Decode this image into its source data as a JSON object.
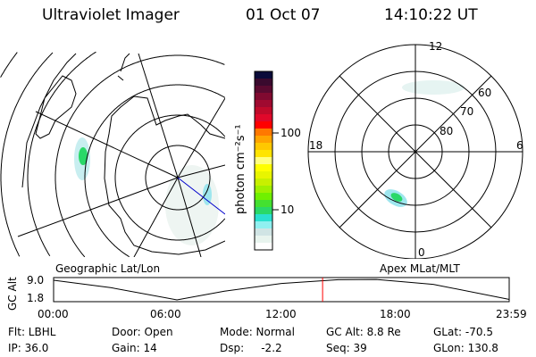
{
  "header": {
    "instrument": "Ultraviolet Imager",
    "date": "01 Oct 07",
    "time": "14:10:22 UT"
  },
  "colorbar": {
    "unit_label": "photon cm⁻²s⁻¹",
    "ticks": [
      "100",
      "10"
    ],
    "colors": [
      "#0b0b3a",
      "#3a0a2e",
      "#5a0a30",
      "#800a30",
      "#a00a30",
      "#c00a2a",
      "#e0082a",
      "#ff0000",
      "#ff7800",
      "#ffa400",
      "#ffc800",
      "#ffe400",
      "#ffff80",
      "#ffff00",
      "#e8f500",
      "#c8f000",
      "#a0f000",
      "#70f000",
      "#44e030",
      "#2ad868",
      "#2ae0d0",
      "#90f0f0",
      "#d0e4e4",
      "#e8f4ee",
      "#ffffff"
    ]
  },
  "geo_map": {
    "label": "Geographic Lat/Lon"
  },
  "polar_map": {
    "label": "Apex MLat/MLT",
    "mlt_labels": {
      "top": "12",
      "left": "18",
      "right": "6",
      "bottom": "0"
    },
    "lat_labels": [
      "80",
      "70",
      "60"
    ]
  },
  "timeline": {
    "ylabel": "GC Alt",
    "yticks": [
      "9.0",
      "1.8"
    ],
    "xticks": [
      "00:00",
      "06:00",
      "12:00",
      "18:00",
      "23:59"
    ],
    "altitude_curve": [
      [
        0,
        9.0
      ],
      [
        3,
        6.3
      ],
      [
        6.5,
        1.8
      ],
      [
        9,
        5.0
      ],
      [
        12,
        7.8
      ],
      [
        15,
        9.2
      ],
      [
        17,
        9.3
      ],
      [
        20,
        7.5
      ],
      [
        23.98,
        2.0
      ]
    ],
    "current_time_hours": 14.17,
    "marker_color": "#ff0000"
  },
  "info": {
    "flt": "Flt: LBHL",
    "ip": "IP: 36.0",
    "door": "Door: Open",
    "gain": "Gain: 14",
    "mode": "Mode: Normal",
    "dsp": "Dsp:     -2.2",
    "gc_alt": "GC Alt: 8.8 Re",
    "seq": "Seq: 39",
    "glat": "GLat: -70.5",
    "glon": "GLon: 130.8"
  }
}
